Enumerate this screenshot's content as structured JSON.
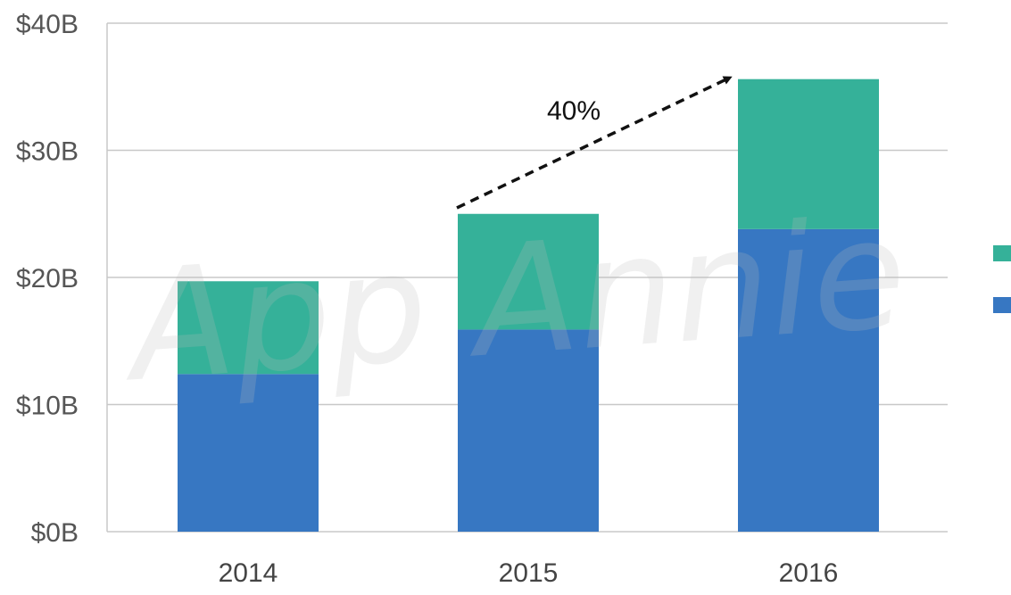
{
  "chart_data": {
    "type": "bar",
    "stacked": true,
    "categories": [
      "2014",
      "2015",
      "2016"
    ],
    "series": [
      {
        "color": "#3777C2",
        "values": [
          12.4,
          15.9,
          23.8
        ]
      },
      {
        "color": "#35B199",
        "values": [
          7.3,
          9.1,
          11.8
        ]
      }
    ],
    "ylim": [
      0,
      40
    ],
    "yticks": [
      0,
      10,
      20,
      30,
      40
    ],
    "ytick_labels": [
      "$0B",
      "$10B",
      "$20B",
      "$30B",
      "$40B"
    ],
    "grid": true,
    "legend": "right",
    "annotation": {
      "text": "40%",
      "from_category": "2015",
      "to_category": "2016"
    },
    "watermark": "App Annie"
  }
}
